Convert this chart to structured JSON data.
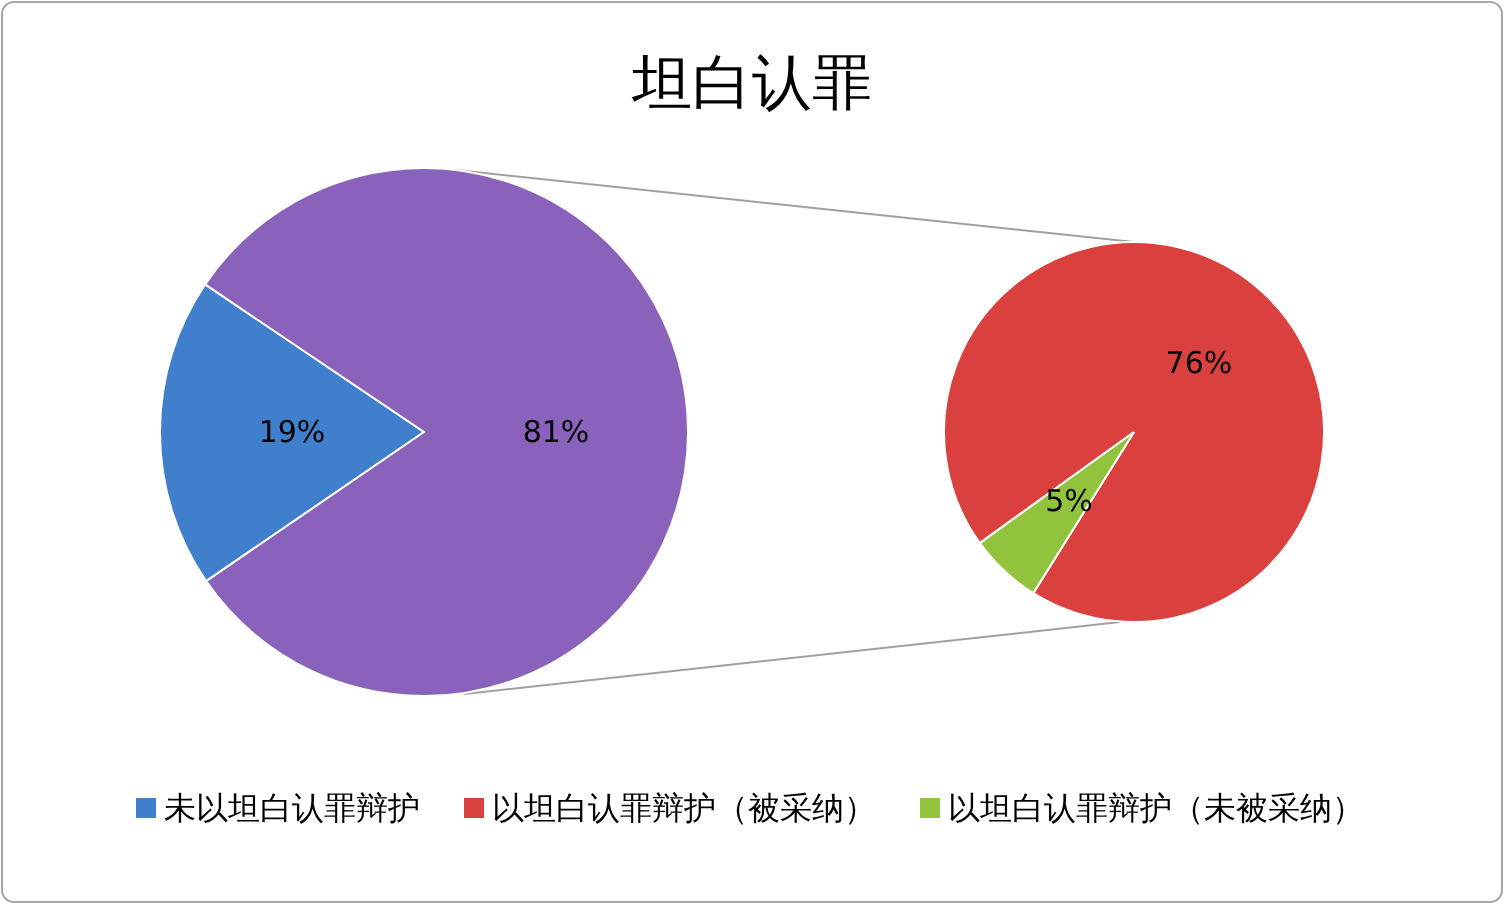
{
  "chart_data": [
    {
      "type": "pie",
      "title": "坦白认罪",
      "categories": [
        "未以坦白认罪辩护",
        null
      ],
      "values": [
        19,
        81
      ],
      "value_labels": [
        "19%",
        "81%"
      ],
      "colors": [
        "#3f7fcc",
        "#8b62bb"
      ],
      "legend": "bottom"
    },
    {
      "type": "pie",
      "categories": [
        "以坦白认罪辩护（被采纳）",
        "以坦白认罪辩护（未被采纳）"
      ],
      "values": [
        76,
        5
      ],
      "value_labels": [
        "76%",
        "5%"
      ],
      "colors": [
        "#d9403e",
        "#92c33c"
      ],
      "legend": "bottom"
    }
  ]
}
